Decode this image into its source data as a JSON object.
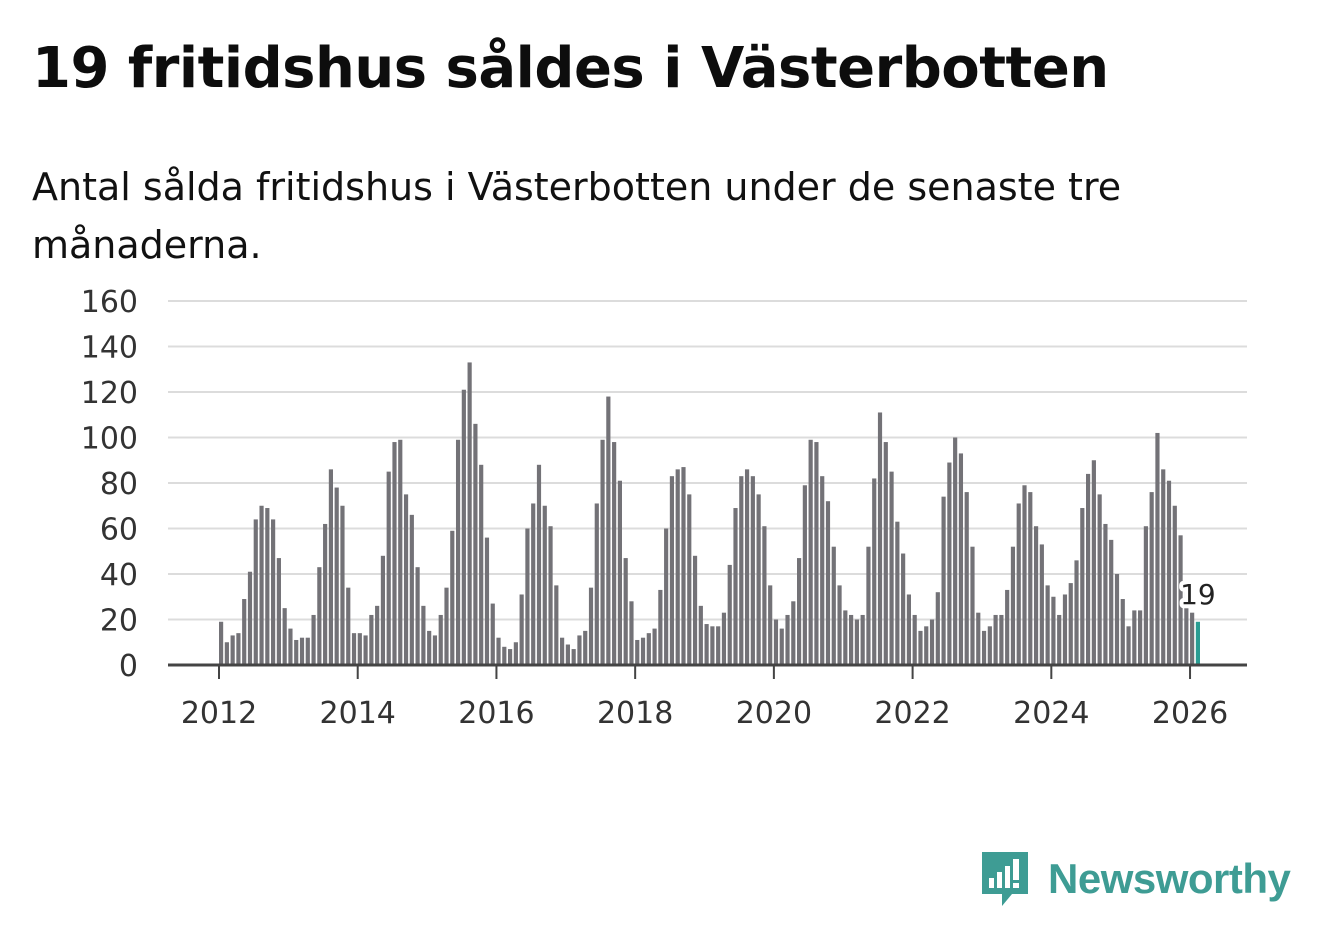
{
  "header": {
    "title": "19 fritidshus såldes i Västerbotten",
    "subtitle": "Antal sålda fritidshus i Västerbotten under de senaste tre månaderna."
  },
  "brand": {
    "name": "Newsworthy",
    "color": "#3e9c94"
  },
  "chart_data": {
    "type": "bar",
    "title": "19 fritidshus såldes i Västerbotten",
    "subtitle": "Antal sålda fritidshus i Västerbotten under de senaste tre månaderna.",
    "xlabel": "",
    "ylabel": "",
    "x_start": "2012-01",
    "x_ticks": [
      "2012",
      "2014",
      "2016",
      "2018",
      "2020",
      "2022",
      "2024",
      "2026"
    ],
    "ylim": [
      0,
      160
    ],
    "y_ticks": [
      0,
      20,
      40,
      60,
      80,
      100,
      120,
      140,
      160
    ],
    "grid": true,
    "legend": "none",
    "bar_color": "#737277",
    "highlight_color": "#2a9d93",
    "highlight_label": "19",
    "values": [
      19,
      10,
      13,
      14,
      29,
      41,
      64,
      70,
      69,
      64,
      47,
      25,
      16,
      11,
      12,
      12,
      22,
      43,
      62,
      86,
      78,
      70,
      34,
      14,
      14,
      13,
      22,
      26,
      48,
      85,
      98,
      99,
      75,
      66,
      43,
      26,
      15,
      13,
      22,
      34,
      59,
      99,
      121,
      133,
      106,
      88,
      56,
      27,
      12,
      8,
      7,
      10,
      31,
      60,
      71,
      88,
      70,
      61,
      35,
      12,
      9,
      7,
      13,
      15,
      34,
      71,
      99,
      118,
      98,
      81,
      47,
      28,
      11,
      12,
      14,
      16,
      33,
      60,
      83,
      86,
      87,
      75,
      48,
      26,
      18,
      17,
      17,
      23,
      44,
      69,
      83,
      86,
      83,
      75,
      61,
      35,
      20,
      16,
      22,
      28,
      47,
      79,
      99,
      98,
      83,
      72,
      52,
      35,
      24,
      22,
      20,
      22,
      52,
      82,
      111,
      98,
      85,
      63,
      49,
      31,
      22,
      15,
      17,
      20,
      32,
      74,
      89,
      100,
      93,
      76,
      52,
      23,
      15,
      17,
      22,
      22,
      33,
      52,
      71,
      79,
      76,
      61,
      53,
      35,
      30,
      22,
      31,
      36,
      46,
      69,
      84,
      90,
      75,
      62,
      55,
      40,
      29,
      17,
      24,
      24,
      61,
      76,
      102,
      86,
      81,
      70,
      57,
      32,
      23,
      19
    ]
  }
}
